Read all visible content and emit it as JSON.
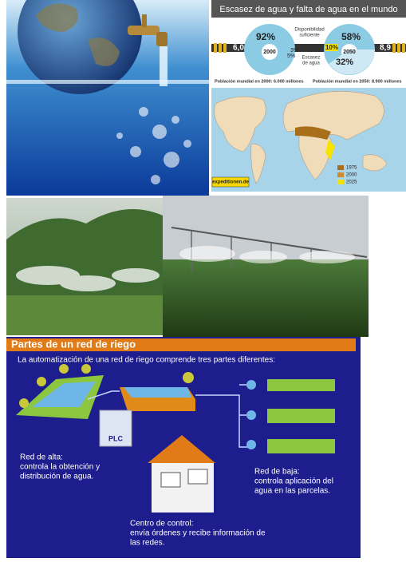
{
  "infographic": {
    "title": "Escasez de agua y falta de agua en el mundo",
    "population_left": "6,0",
    "population_right": "8,9",
    "label_sufficient": [
      "Disponibilidad",
      "suficiente"
    ],
    "label_lack": "Falta de agua",
    "label_scarcity": [
      "Escasez",
      "de agua"
    ],
    "pie_2000": {
      "year": "2000",
      "sufficient": "92%",
      "lack": "3%",
      "scarcity": "5%"
    },
    "pie_2050": {
      "year": "2050",
      "sufficient": "58%",
      "lack": "10%",
      "scarcity": "32%"
    },
    "caption_2000": "Población mundial en 2000: 6.000 millones",
    "caption_2050": "Población mundial en 2050: 8.900 millones",
    "legend": [
      "1975",
      "2000",
      "2025"
    ],
    "source": "expeditionen.de"
  },
  "diagram": {
    "title": "Partes de un red de riego",
    "intro": "La automatización de una red de riego comprende tres partes diferentes:",
    "plc": "PLC",
    "red_alta": [
      "Red de alta:",
      "controla la obtención y",
      "distribución de agua."
    ],
    "red_baja": [
      "Red de baja:",
      "controla aplicación del",
      "agua en las parcelas."
    ],
    "centro": [
      "Centro de control:",
      "envía órdenes y recibe información de",
      "las redes."
    ]
  }
}
